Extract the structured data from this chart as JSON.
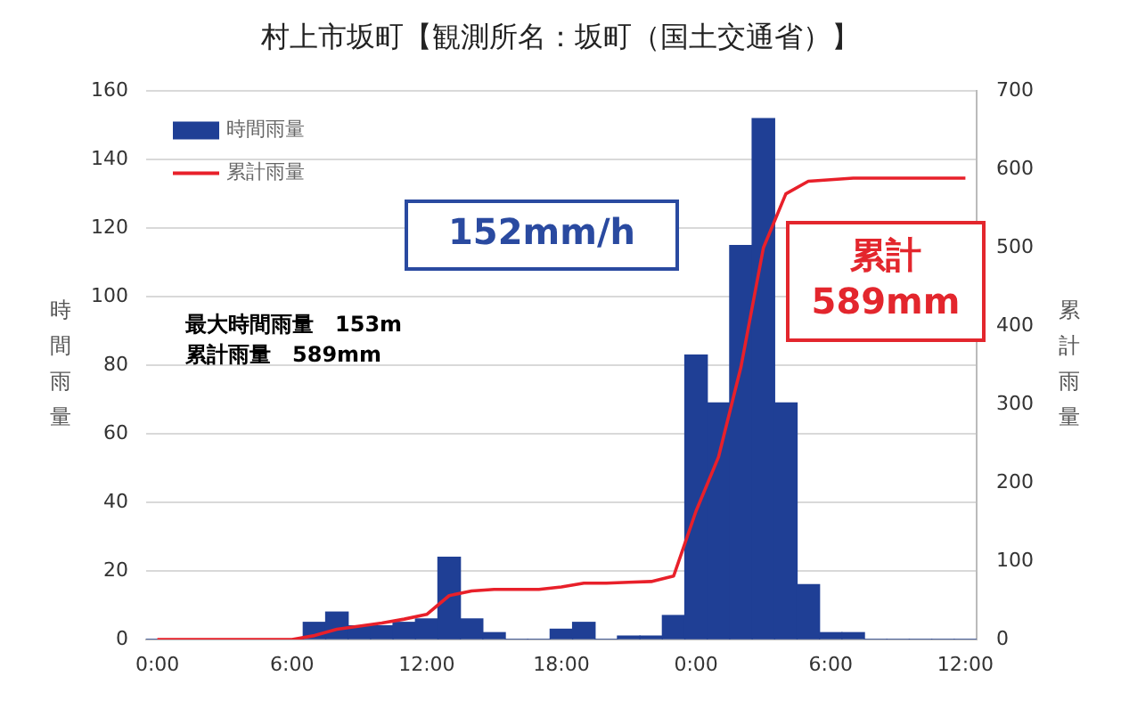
{
  "chart_data": {
    "type": "bar",
    "title": "村上市坂町【観測所名：坂町（国土交通省）】",
    "ylabel": "時間雨量",
    "y2label": "累計雨量",
    "categories": [
      "0:00",
      null,
      null,
      null,
      null,
      null,
      "6:00",
      null,
      null,
      null,
      null,
      null,
      "12:00",
      null,
      null,
      null,
      null,
      null,
      "18:00",
      null,
      null,
      null,
      null,
      null,
      "0:00",
      null,
      null,
      null,
      null,
      null,
      "6:00",
      null,
      null,
      null,
      null,
      null,
      "12:00"
    ],
    "series": [
      {
        "name": "時間雨量",
        "color": "#1f3f95",
        "values": [
          0,
          0,
          0,
          0,
          0,
          0,
          0,
          5,
          8,
          4,
          4,
          5,
          6,
          24,
          6,
          2,
          0,
          0,
          3,
          5,
          0,
          1,
          1,
          7,
          83,
          69,
          115,
          152,
          69,
          16,
          2,
          2,
          0,
          0,
          0,
          0,
          0
        ]
      },
      {
        "name": "累計雨量",
        "type": "line",
        "axis": "y2",
        "color": "#e8202a",
        "values": [
          0,
          0,
          0,
          0,
          0,
          0,
          0,
          5,
          13,
          17,
          21,
          26,
          32,
          56,
          62,
          64,
          64,
          64,
          67,
          72,
          72,
          73,
          74,
          81,
          164,
          233,
          348,
          500,
          569,
          585,
          587,
          589,
          589,
          589,
          589,
          589,
          589
        ]
      }
    ],
    "ylim": [
      0,
      160
    ],
    "yticks": [
      0,
      20,
      40,
      60,
      80,
      100,
      120,
      140,
      160
    ],
    "y2lim": [
      0,
      700
    ],
    "y2ticks": [
      0,
      100,
      200,
      300,
      400,
      500,
      600,
      700
    ],
    "grid": "y",
    "legend": "top left",
    "marker": "none",
    "line_style": "solid",
    "annotations": [
      "152mm/h",
      "累計\n589mm",
      "最大時間雨量　153m",
      "累計雨量　589mm"
    ]
  }
}
